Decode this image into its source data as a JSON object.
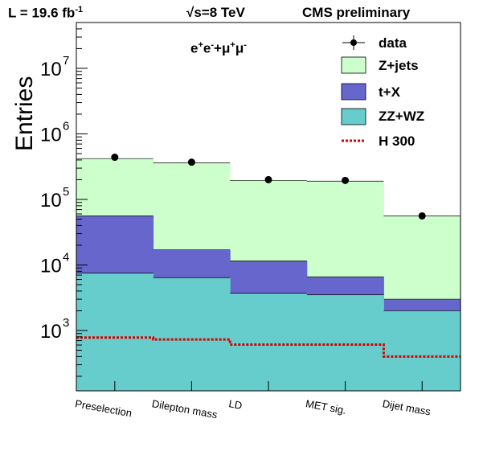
{
  "header": {
    "lumi_prefix": "L = 19.6 fb",
    "lumi_sup": "-1",
    "energy": "√s=8 TeV",
    "experiment": "CMS preliminary"
  },
  "channel": {
    "e1": "e",
    "s1": "+",
    "e2": "e",
    "s2": "-",
    "plus": "+",
    "m1": "μ",
    "s3": "+",
    "m2": "μ",
    "s4": "-"
  },
  "chart_data": {
    "type": "bar",
    "stacked": true,
    "ylabel": "Entries",
    "yscale": "log",
    "ylim": [
      120,
      50000000
    ],
    "categories": [
      "Preselection",
      "Dilepton mass",
      "LD",
      "MET sig.",
      "Dijet mass"
    ],
    "y_ticks": [
      {
        "value": 1000,
        "mantissa": "10",
        "exp": "3"
      },
      {
        "value": 10000,
        "mantissa": "10",
        "exp": "4"
      },
      {
        "value": 100000,
        "mantissa": "10",
        "exp": "5"
      },
      {
        "value": 1000000,
        "mantissa": "10",
        "exp": "6"
      },
      {
        "value": 10000000,
        "mantissa": "10",
        "exp": "7"
      }
    ],
    "stack_totals": [
      {
        "name": "ZZ+WZ",
        "color": "#66cccc",
        "values": [
          7500,
          6400,
          3700,
          3500,
          2000
        ]
      },
      {
        "name": "t+X",
        "color": "#6666cc",
        "values": [
          56000,
          17000,
          11500,
          6600,
          3000
        ]
      },
      {
        "name": "Z+jets",
        "color": "#ccffcc",
        "values": [
          420000,
          360000,
          195000,
          190000,
          56000
        ]
      }
    ],
    "signal": {
      "name": "H 300",
      "color": "#dd0000",
      "values": [
        780,
        730,
        610,
        610,
        400
      ]
    },
    "data": {
      "name": "data",
      "values": [
        440000,
        370000,
        200000,
        195000,
        56000
      ]
    },
    "legend_position": "top-right"
  }
}
